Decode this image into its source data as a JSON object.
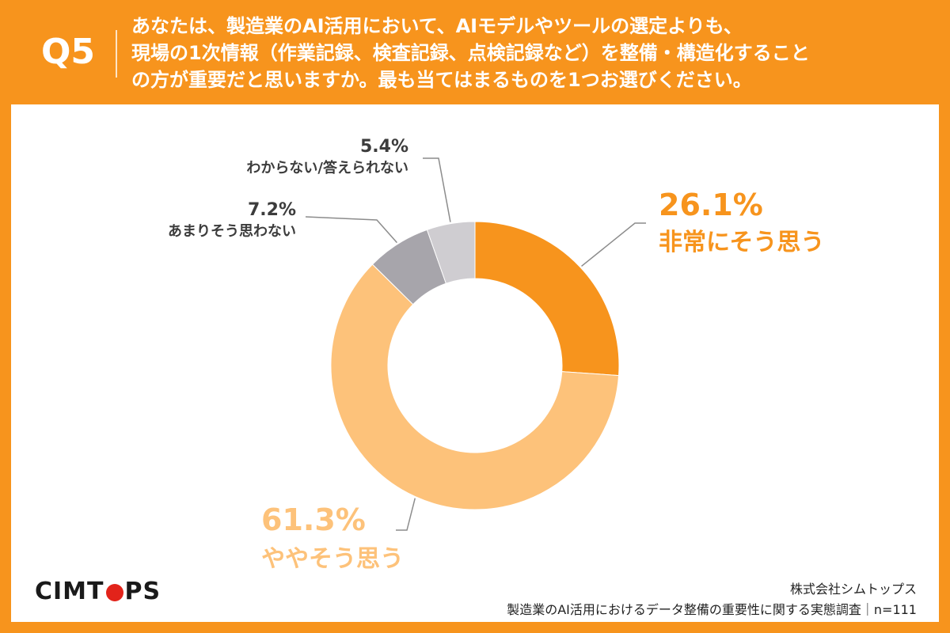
{
  "header": {
    "question_label": "Q5",
    "question_lines": [
      "あなたは、製造業のAI活用において、AIモデルやツールの選定よりも、",
      "現場の1次情報（作業記録、検査記録、点検記録など）を整備・構造化すること",
      "の方が重要だと思いますか。最も当てはまるものを1つお選びください。"
    ]
  },
  "chart_data": {
    "type": "pie",
    "donut": true,
    "categories": [
      "非常にそう思う",
      "ややそう思う",
      "あまりそう思わない",
      "わからない/答えられない"
    ],
    "values": [
      26.1,
      61.3,
      7.2,
      5.4
    ],
    "value_labels": [
      "26.1%",
      "61.3%",
      "7.2%",
      "5.4%"
    ],
    "colors": [
      "#f7941d",
      "#fdc27a",
      "#a7a5ab",
      "#cfcdd1"
    ],
    "label_colors": [
      "#f7941d",
      "#fdc27a",
      "#3c3c3c",
      "#3c3c3c"
    ],
    "leader_color": "#8c8c8c"
  },
  "footer": {
    "logo_left": "CIMT",
    "logo_right": "PS",
    "company": "株式会社シムトップス",
    "survey": "製造業のAI活用におけるデータ整備の重要性に関する実態調査｜n=111"
  }
}
